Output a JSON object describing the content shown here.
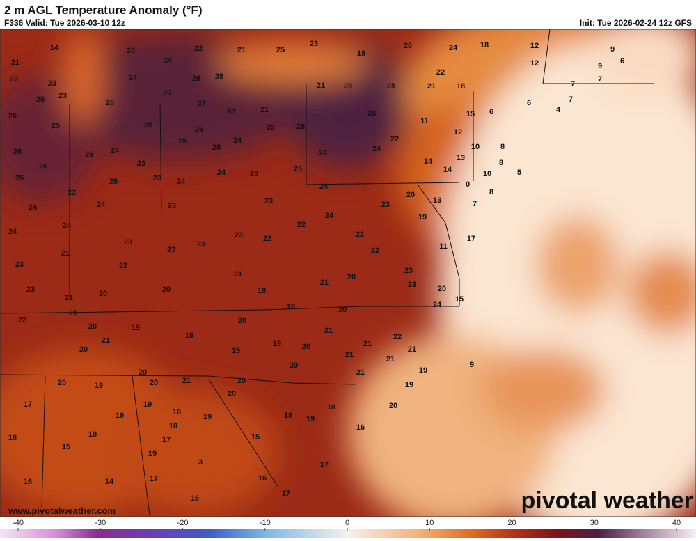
{
  "header": {
    "title": "2 m AGL Temperature Anomaly (°F)",
    "valid": "F336 Valid: Tue 2026-03-10 12z",
    "init": "Init: Tue 2026-02-24 12z GFS"
  },
  "watermark": "pivotal weather",
  "website": "www.pivotalweather.com",
  "colorbar": {
    "ticks": [
      -40,
      -30,
      -20,
      -10,
      0,
      10,
      20,
      30,
      40
    ]
  },
  "map_labels": [
    14,
    20,
    22,
    21,
    25,
    23,
    18,
    26,
    24,
    18,
    12,
    9,
    21,
    24,
    22,
    12,
    6,
    9,
    23,
    24,
    26,
    25,
    23,
    21,
    28,
    25,
    21,
    18,
    7,
    7,
    25,
    23,
    27,
    26,
    27,
    18,
    21,
    6,
    7,
    15,
    6,
    4,
    26,
    25,
    11,
    28,
    12,
    25,
    26,
    25,
    26,
    24,
    25,
    25,
    22,
    10,
    8,
    26,
    26,
    24,
    24,
    24,
    13,
    8,
    23,
    26,
    14,
    14,
    10,
    5,
    25,
    25,
    23,
    24,
    24,
    23,
    25,
    24,
    0,
    8,
    22,
    20,
    23,
    13,
    24,
    23,
    24,
    23,
    7,
    24,
    24,
    22,
    19,
    24,
    23,
    23,
    23,
    22,
    22,
    17,
    11,
    23,
    22,
    21,
    22,
    23,
    21,
    23,
    20,
    21,
    23,
    20,
    23,
    20,
    20,
    18,
    15,
    24,
    21,
    18,
    20,
    21,
    22,
    20,
    20,
    19,
    19,
    21,
    21,
    22,
    19,
    21,
    20,
    19,
    21,
    20,
    21,
    21,
    20,
    9,
    19,
    21,
    20,
    20,
    19,
    20,
    21,
    20,
    20,
    19,
    17,
    19,
    16,
    19,
    19,
    18,
    19,
    18,
    20,
    18,
    18,
    18,
    15,
    16,
    17,
    15,
    19,
    3,
    17,
    17,
    16,
    16,
    14,
    17,
    16
  ]
}
